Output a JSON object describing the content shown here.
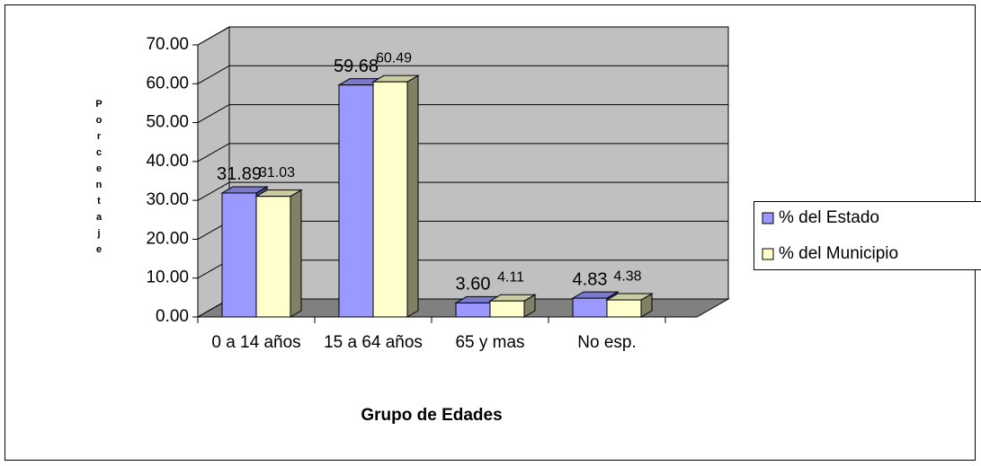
{
  "chart_data": {
    "type": "bar3d",
    "x_label": "Grupo de Edades",
    "y_label": "Porcentaje",
    "categories": [
      "0 a 14 años",
      "15 a 64 años",
      "65 y mas",
      "No esp."
    ],
    "series": [
      {
        "name": "% del Estado",
        "color": "#9999ff",
        "values": [
          31.89,
          59.68,
          3.6,
          4.83
        ],
        "value_labels": [
          "31.89",
          "59.68",
          "3.60",
          "4.83"
        ]
      },
      {
        "name": "% del Municipio",
        "color": "#ffffcc",
        "values": [
          31.03,
          60.49,
          4.11,
          4.38
        ],
        "value_labels": [
          "31.03",
          "60.49",
          "4.11",
          "4.38"
        ]
      }
    ],
    "ylim": [
      0,
      70
    ],
    "yticks": [
      {
        "value": 0,
        "label": "0.00"
      },
      {
        "value": 10,
        "label": "10.00"
      },
      {
        "value": 20,
        "label": "20.00"
      },
      {
        "value": 30,
        "label": "30.00"
      },
      {
        "value": 40,
        "label": "40.00"
      },
      {
        "value": 50,
        "label": "50.00"
      },
      {
        "value": 60,
        "label": "60.00"
      },
      {
        "value": 70,
        "label": "70.00"
      }
    ],
    "grid": true,
    "legend": "right"
  }
}
